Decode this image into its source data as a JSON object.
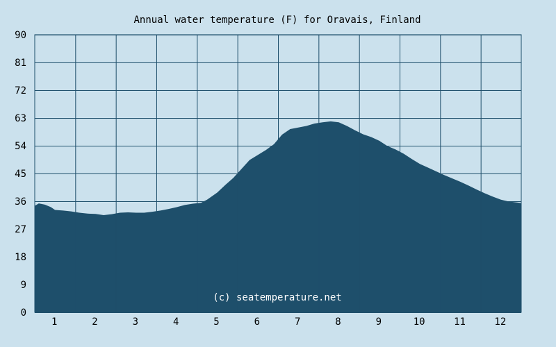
{
  "chart_data": {
    "type": "area",
    "title": "Annual water temperature (F) for Oravais, Finland",
    "xlabel": "",
    "ylabel": "",
    "x_tick_labels": [
      "1",
      "2",
      "3",
      "4",
      "5",
      "6",
      "7",
      "8",
      "9",
      "10",
      "11",
      "12"
    ],
    "y_tick_labels": [
      "0",
      "9",
      "18",
      "27",
      "36",
      "45",
      "54",
      "63",
      "72",
      "81",
      "90"
    ],
    "ylim": [
      0,
      90
    ],
    "xlim": [
      0.5,
      12.5
    ],
    "grid": true,
    "watermark": "(c) seatemperature.net",
    "colors": {
      "background": "#cbe1ed",
      "fill": "#1e4f6b",
      "grid": "#1e4f6b"
    },
    "series": [
      {
        "x": [
          0.5,
          0.6,
          0.75,
          0.9,
          1.0,
          1.2,
          1.4,
          1.6,
          1.8,
          2.0,
          2.2,
          2.4,
          2.6,
          2.8,
          3.0,
          3.2,
          3.4,
          3.6,
          3.8,
          4.0,
          4.2,
          4.4,
          4.6,
          4.75,
          5.0,
          5.2,
          5.4,
          5.6,
          5.8,
          6.0,
          6.2,
          6.4,
          6.6,
          6.8,
          7.0,
          7.2,
          7.4,
          7.6,
          7.8,
          8.0,
          8.2,
          8.4,
          8.6,
          8.8,
          9.0,
          9.2,
          9.4,
          9.6,
          9.8,
          10.0,
          10.2,
          10.4,
          10.6,
          10.8,
          11.0,
          11.2,
          11.4,
          11.6,
          11.8,
          12.0,
          12.2,
          12.4,
          12.5
        ],
        "y": [
          34.5,
          35.3,
          34.9,
          34.1,
          33.2,
          33.0,
          32.7,
          32.3,
          32.0,
          31.9,
          31.5,
          31.8,
          32.3,
          32.4,
          32.3,
          32.3,
          32.6,
          33.0,
          33.5,
          34.1,
          34.8,
          35.2,
          35.5,
          36.5,
          38.8,
          41.3,
          43.6,
          46.5,
          49.4,
          51.0,
          52.6,
          54.5,
          57.6,
          59.4,
          59.9,
          60.4,
          61.2,
          61.6,
          61.9,
          61.6,
          60.4,
          59.0,
          57.7,
          56.8,
          55.6,
          53.9,
          52.8,
          51.4,
          49.7,
          48.1,
          46.9,
          45.7,
          44.5,
          43.4,
          42.3,
          41.1,
          39.8,
          38.6,
          37.5,
          36.5,
          35.9,
          35.6,
          35.4
        ]
      }
    ]
  }
}
